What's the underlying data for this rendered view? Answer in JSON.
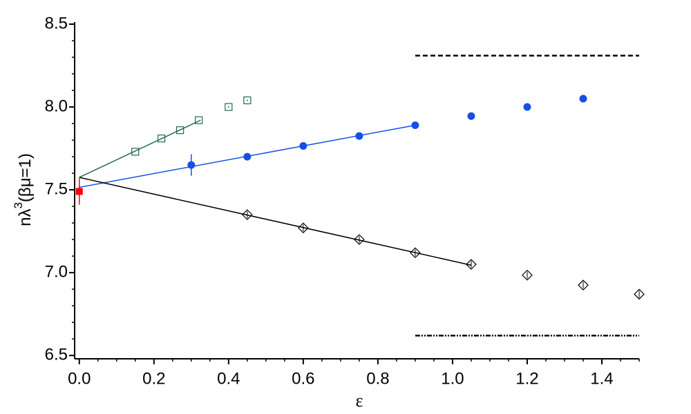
{
  "chart_data": {
    "type": "scatter",
    "xlabel": "ε",
    "ylabel_parts": [
      "nλ",
      "3",
      "(βμ=1)"
    ],
    "xlim": [
      -0.0125,
      1.5
    ],
    "ylim": [
      6.48,
      8.5
    ],
    "xticks": [
      {
        "value": 0,
        "label": "0.0"
      },
      0.2,
      0.4,
      0.6,
      0.8,
      {
        "value": 1,
        "label": "1.0"
      },
      1.2,
      1.4
    ],
    "yticks": [
      6.5,
      {
        "value": 7,
        "label": "7.0"
      },
      7.5,
      {
        "value": 8,
        "label": "8.0"
      },
      8.5
    ],
    "xminorticks": [
      0.05,
      0.1,
      0.15,
      0.25,
      0.3,
      0.35,
      0.45,
      0.5,
      0.55,
      0.65,
      0.7,
      0.75,
      0.85,
      0.9,
      0.95,
      1.05,
      1.1,
      1.15,
      1.25,
      1.3,
      1.35,
      1.45,
      1.5
    ],
    "yminorticks": [
      6.6,
      6.7,
      6.8,
      6.9,
      7.1,
      7.2,
      7.3,
      7.4,
      7.6,
      7.7,
      7.8,
      7.9,
      8.1,
      8.2,
      8.3,
      8.4
    ],
    "series": [
      {
        "marker": "none",
        "linestyle": "solid",
        "color": "#1e6b44",
        "x": [
          0,
          0.325
        ],
        "values": [
          7.575,
          7.92
        ]
      },
      {
        "marker": "none",
        "linestyle": "solid",
        "color": "#1450e6",
        "x": [
          0,
          0.9
        ],
        "values": [
          7.515,
          7.89
        ]
      },
      {
        "marker": "none",
        "linestyle": "solid",
        "color": "#000000",
        "x": [
          0,
          1.05
        ],
        "values": [
          7.575,
          7.045
        ]
      },
      {
        "marker": "none",
        "linestyle": "dashed",
        "color": "#000000",
        "x": [
          0.9,
          1.5
        ],
        "values": [
          8.31,
          8.31
        ]
      },
      {
        "marker": "none",
        "linestyle": "dashdot",
        "color": "#000000",
        "x": [
          0.9,
          1.5
        ],
        "values": [
          6.62,
          6.62
        ]
      },
      {
        "marker": "square-open",
        "color": "#1e6b44",
        "x": [
          0.15,
          0.22,
          0.27,
          0.32
        ],
        "values": [
          7.73,
          7.81,
          7.86,
          7.92
        ]
      },
      {
        "marker": "square-dot",
        "color": "#1e6b44",
        "x": [
          0.4,
          0.45
        ],
        "values": [
          8.0,
          8.04
        ]
      },
      {
        "marker": "circle",
        "color": "#1450e6",
        "x": [
          0.3,
          0.45,
          0.6,
          0.75,
          0.9,
          1.05,
          1.2,
          1.35
        ],
        "values": [
          7.65,
          7.7,
          7.765,
          7.825,
          7.89,
          7.945,
          8.0,
          8.05
        ],
        "errors": [
          0.065,
          null,
          null,
          null,
          null,
          null,
          null,
          null
        ]
      },
      {
        "marker": "diamond",
        "color": "#000000",
        "x": [
          0.45,
          0.6,
          0.75,
          0.9,
          1.05,
          1.2,
          1.35,
          1.5
        ],
        "values": [
          7.35,
          7.27,
          7.2,
          7.12,
          7.05,
          6.985,
          6.925,
          6.87
        ]
      },
      {
        "marker": "square-filled",
        "color": "#ff0000",
        "x": [
          0
        ],
        "values": [
          7.49
        ],
        "errors": [
          0.08
        ]
      }
    ]
  }
}
